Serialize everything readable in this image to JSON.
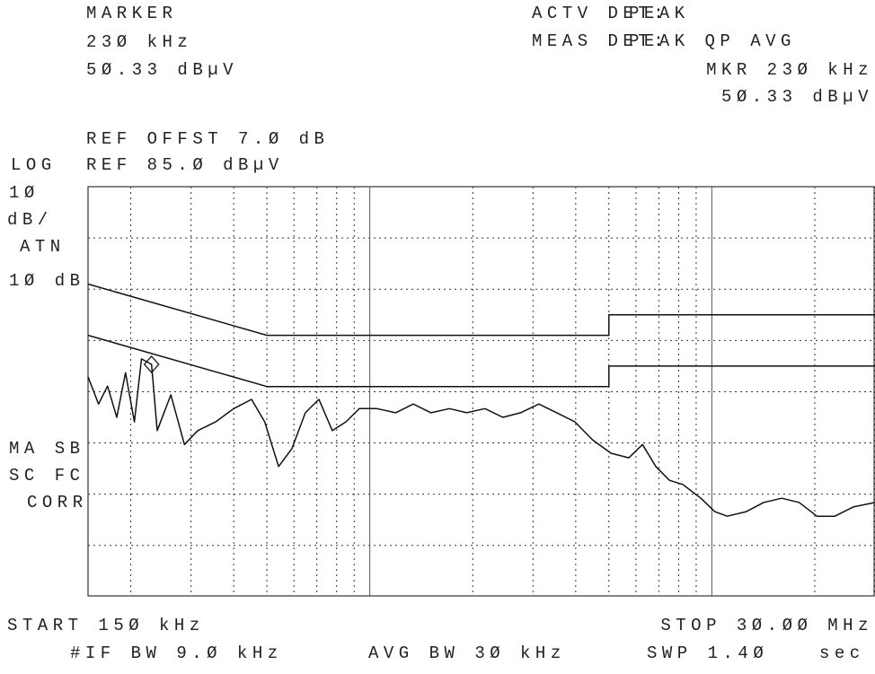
{
  "chart_data": {
    "type": "line",
    "labels": {
      "marker": "MARKER",
      "marker_freq": "23Ø kHz",
      "marker_level": "5Ø.33 dBµV",
      "actv_det": "ACTV DET:",
      "actv_det_value": "PEAK",
      "meas_det": "MEAS DET:",
      "meas_det_value": "PEAK QP AVG",
      "mkr_freq": "MKR 23Ø kHz",
      "mkr_level": "5Ø.33 dBµV",
      "ref_offset": "REF OFFST 7.Ø dB",
      "log": "LOG",
      "ref_level": "REF 85.Ø dBµV",
      "scale_1": "1Ø",
      "scale_2": "dB/",
      "atn": "ATN",
      "atn_value": "1Ø dB",
      "ma_sb": "MA SB",
      "sc_fc": "SC FC",
      "corr": "CORR",
      "start": "START 15Ø kHz",
      "stop": "STOP 3Ø.ØØ MHz",
      "if_bw": "#IF BW 9.Ø kHz",
      "avg_bw": "AVG BW 3Ø kHz",
      "swp": "SWP 1.4Ø",
      "swp_unit": "sec"
    },
    "x_log": true,
    "xlim": [
      0.15,
      30
    ],
    "ylim": [
      -5,
      85
    ],
    "xticks": [
      0.2,
      0.3,
      0.4,
      0.5,
      0.6,
      0.7,
      0.8,
      0.9,
      1,
      2,
      3,
      4,
      5,
      6,
      7,
      8,
      9,
      10,
      20,
      30
    ],
    "major_xticks": [
      1,
      10
    ],
    "yticks": [
      5,
      15,
      25,
      35,
      45,
      55,
      65,
      75
    ],
    "grid": true,
    "series": [
      {
        "color": "#111",
        "x": [
          0.15,
          0.161,
          0.171,
          0.182,
          0.193,
          0.205,
          0.215,
          0.23,
          0.239,
          0.262,
          0.287,
          0.314,
          0.354,
          0.4,
          0.451,
          0.493,
          0.541,
          0.592,
          0.648,
          0.71,
          0.777,
          0.851,
          0.932,
          1.05,
          1.19,
          1.34,
          1.51,
          1.71,
          1.92,
          2.17,
          2.45,
          2.76,
          3.12,
          3.52,
          3.98,
          4.48,
          5.07,
          5.72,
          6.27,
          6.86,
          7.52,
          8.22,
          9.29,
          10.2,
          11.1,
          12.6,
          14.2,
          16.0,
          18.0,
          20.3,
          22.9,
          25.9,
          30.0
        ],
        "values": [
          47.9,
          42.6,
          46.1,
          40.0,
          48.7,
          39.1,
          51.4,
          50.33,
          37.4,
          44.4,
          34.7,
          37.4,
          39.1,
          41.7,
          43.5,
          39.1,
          30.4,
          33.9,
          40.9,
          43.5,
          37.4,
          39.1,
          41.7,
          41.7,
          40.9,
          42.6,
          40.9,
          41.7,
          40.9,
          41.7,
          40.0,
          40.9,
          42.6,
          40.9,
          39.1,
          35.6,
          33.0,
          32.1,
          34.7,
          30.4,
          27.7,
          26.9,
          24.2,
          21.6,
          20.7,
          21.6,
          23.4,
          24.2,
          23.4,
          20.7,
          20.7,
          22.5,
          23.4
        ]
      },
      {
        "color": "#111",
        "x": [
          0.15,
          0.5,
          5,
          5,
          30
        ],
        "values": [
          66,
          56,
          56,
          60,
          60
        ]
      },
      {
        "color": "#111",
        "x": [
          0.15,
          0.5,
          5,
          5,
          30
        ],
        "values": [
          56,
          46,
          46,
          50,
          50
        ]
      }
    ],
    "marker_point": {
      "x": 0.23,
      "y": 50.33
    }
  }
}
